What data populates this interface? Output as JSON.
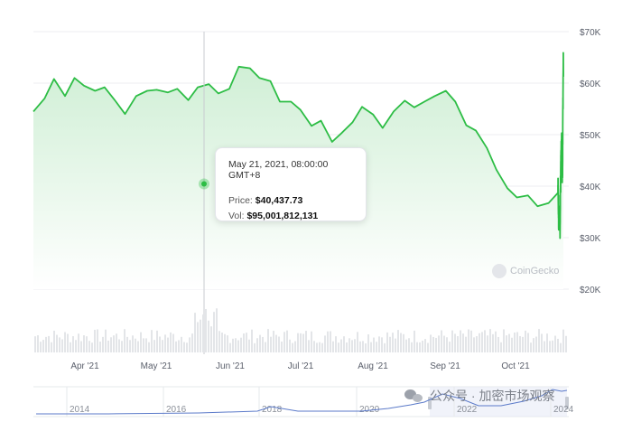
{
  "chart_data": {
    "type": "area",
    "title": "",
    "xlabel": "",
    "ylabel": "",
    "x_tick_labels": [
      "Apr '21",
      "May '21",
      "Jun '21",
      "Jul '21",
      "Aug '21",
      "Sep '21",
      "Oct '21"
    ],
    "y_tick_labels": [
      "$20K",
      "$30K",
      "$40K",
      "$50K",
      "$60K",
      "$70K"
    ],
    "ylim": [
      20000,
      70000
    ],
    "grid": true,
    "series": [
      {
        "values": [
          [
            0.0,
            54500
          ],
          [
            0.7,
            57000
          ],
          [
            1.3,
            60800
          ],
          [
            2.0,
            57500
          ],
          [
            2.6,
            61000
          ],
          [
            3.2,
            59500
          ],
          [
            3.9,
            58500
          ],
          [
            4.5,
            59200
          ],
          [
            5.2,
            56500
          ],
          [
            5.8,
            54000
          ],
          [
            6.5,
            57500
          ],
          [
            7.2,
            58500
          ],
          [
            7.8,
            58700
          ],
          [
            8.5,
            58200
          ],
          [
            9.1,
            58900
          ],
          [
            9.8,
            56700
          ],
          [
            10.4,
            59200
          ],
          [
            11.1,
            59800
          ],
          [
            11.7,
            58000
          ],
          [
            12.4,
            58900
          ],
          [
            13.0,
            63200
          ],
          [
            13.7,
            62900
          ],
          [
            14.3,
            61000
          ],
          [
            15.0,
            60400
          ],
          [
            15.6,
            56400
          ],
          [
            16.3,
            56400
          ],
          [
            16.9,
            54800
          ],
          [
            17.6,
            51700
          ],
          [
            18.2,
            52700
          ],
          [
            18.9,
            48600
          ],
          [
            19.5,
            50300
          ],
          [
            20.2,
            52400
          ],
          [
            20.8,
            55400
          ],
          [
            21.5,
            53900
          ],
          [
            22.1,
            51300
          ],
          [
            22.8,
            54500
          ],
          [
            23.5,
            56600
          ],
          [
            24.1,
            55300
          ],
          [
            24.8,
            56500
          ],
          [
            25.4,
            57500
          ],
          [
            26.1,
            58500
          ],
          [
            26.7,
            56400
          ],
          [
            27.4,
            51800
          ],
          [
            28.0,
            50800
          ],
          [
            28.7,
            47400
          ],
          [
            29.3,
            43200
          ],
          [
            30.0,
            39600
          ],
          [
            30.6,
            37800
          ],
          [
            31.3,
            38200
          ],
          [
            31.9,
            36100
          ],
          [
            32.6,
            36700
          ],
          [
            33.2,
            38700
          ]
        ]
      }
    ],
    "tooltip": {
      "date": "May 21, 2021, 08:00:00 GMT+8",
      "price_label": "Price:",
      "price_value": "$40,437.73",
      "vol_label": "Vol:",
      "vol_value": "$95,001,812,131"
    },
    "navigator": {
      "tick_labels": [
        "2014",
        "2016",
        "2018",
        "2020",
        "2022",
        "2024"
      ]
    }
  },
  "watermark": {
    "text": "CoinGecko"
  },
  "overlay_caption": "公众号 · 加密市场观察",
  "colors": {
    "line": "#2dbd45",
    "area_top": "#cdeed3",
    "area_bottom": "#ffffff",
    "grid": "#eceef1",
    "volume": "#e3e5e8",
    "navigator_line": "#5b7ac9",
    "crosshair": "#c8cbd0"
  }
}
